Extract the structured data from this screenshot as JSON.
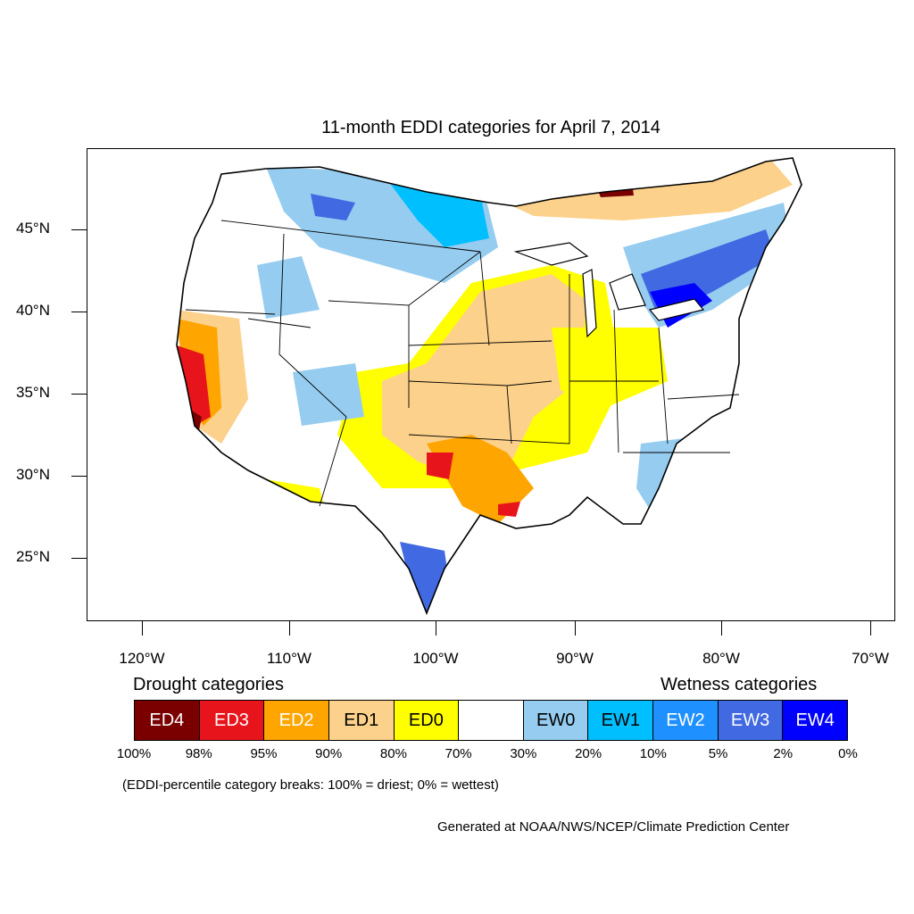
{
  "title": "11-month EDDI categories for April 7, 2014",
  "lat_labels": [
    "45°N",
    "40°N",
    "35°N",
    "30°N",
    "25°N"
  ],
  "lon_labels": [
    "120°W",
    "110°W",
    "100°W",
    "90°W",
    "80°W",
    "70°W"
  ],
  "legend": {
    "drought_heading": "Drought categories",
    "wetness_heading": "Wetness categories",
    "categories": [
      {
        "label": "ED4",
        "color": "#7a0000",
        "text_color": "#ffffff"
      },
      {
        "label": "ED3",
        "color": "#e8141c",
        "text_color": "#ffffff"
      },
      {
        "label": "ED2",
        "color": "#ffa500",
        "text_color": "#ffffff"
      },
      {
        "label": "ED1",
        "color": "#fcd18b",
        "text_color": "#000000"
      },
      {
        "label": "ED0",
        "color": "#ffff00",
        "text_color": "#000000"
      },
      {
        "label": "",
        "color": "#ffffff",
        "text_color": "#000000"
      },
      {
        "label": "EW0",
        "color": "#96ccef",
        "text_color": "#000000"
      },
      {
        "label": "EW1",
        "color": "#00bfff",
        "text_color": "#000000"
      },
      {
        "label": "EW2",
        "color": "#1e90ff",
        "text_color": "#ffffff"
      },
      {
        "label": "EW3",
        "color": "#4169e1",
        "text_color": "#ffffff"
      },
      {
        "label": "EW4",
        "color": "#0000ff",
        "text_color": "#ffffff"
      }
    ],
    "breaks": [
      "100%",
      "98%",
      "95%",
      "90%",
      "80%",
      "70%",
      "30%",
      "20%",
      "10%",
      "5%",
      "2%",
      "0%"
    ]
  },
  "note": "(EDDI-percentile category breaks: 100% = driest; 0% = wettest)",
  "credit": "Generated at NOAA/NWS/NCEP/Climate Prediction Center"
}
